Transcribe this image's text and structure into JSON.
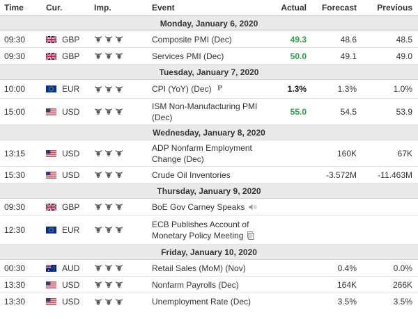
{
  "header": {
    "time": "Time",
    "currency": "Cur.",
    "importance": "Imp.",
    "event": "Event",
    "actual": "Actual",
    "forecast": "Forecast",
    "previous": "Previous"
  },
  "days": [
    {
      "label": "Monday, January 6, 2020"
    },
    {
      "label": "Tuesday, January 7, 2020"
    },
    {
      "label": "Wednesday, January 8, 2020"
    },
    {
      "label": "Thursday, January 9, 2020"
    },
    {
      "label": "Friday, January 10, 2020"
    }
  ],
  "rows": [
    {
      "time": "09:30",
      "flag": "gb-flag",
      "currency": "GBP",
      "event": "Composite PMI (Dec)",
      "event2": "",
      "actual": "49.3",
      "actual_color": "#2ea043",
      "forecast": "48.6",
      "previous": "48.5"
    },
    {
      "time": "09:30",
      "flag": "gb-flag",
      "currency": "GBP",
      "event": "Services PMI (Dec)",
      "event2": "",
      "actual": "50.0",
      "actual_color": "#2ea043",
      "forecast": "49.1",
      "previous": "49.0"
    },
    {
      "time": "10:00",
      "flag": "eu-flag",
      "currency": "EUR",
      "event": "CPI (YoY) (Dec)",
      "event2": "",
      "actual": "1.3%",
      "actual_color": "#111111",
      "forecast": "1.3%",
      "previous": "1.0%",
      "suffix_icon": "preliminary-icon"
    },
    {
      "time": "15:00",
      "flag": "us-flag",
      "currency": "USD",
      "event": "ISM Non-Manufacturing PMI",
      "event2": "(Dec)",
      "actual": "55.0",
      "actual_color": "#2ea043",
      "forecast": "54.5",
      "previous": "53.9"
    },
    {
      "time": "13:15",
      "flag": "us-flag",
      "currency": "USD",
      "event": "ADP Nonfarm Employment",
      "event2": "Change (Dec)",
      "actual": "",
      "actual_color": "#111111",
      "forecast": "160K",
      "previous": "67K"
    },
    {
      "time": "15:30",
      "flag": "us-flag",
      "currency": "USD",
      "event": "Crude Oil Inventories",
      "event2": "",
      "actual": "",
      "actual_color": "#111111",
      "forecast": "-3.572M",
      "previous": "-11.463M"
    },
    {
      "time": "09:30",
      "flag": "gb-flag",
      "currency": "GBP",
      "event": "BoE Gov Carney Speaks",
      "event2": "",
      "actual": "",
      "actual_color": "#111111",
      "forecast": "",
      "previous": "",
      "suffix_icon": "speech-icon"
    },
    {
      "time": "12:30",
      "flag": "eu-flag",
      "currency": "EUR",
      "event": "ECB Publishes Account of",
      "event2": "Monetary Policy Meeting",
      "actual": "",
      "actual_color": "#111111",
      "forecast": "",
      "previous": "",
      "suffix_icon": "document-icon"
    },
    {
      "time": "00:30",
      "flag": "au-flag",
      "currency": "AUD",
      "event": "Retail Sales (MoM) (Nov)",
      "event2": "",
      "actual": "",
      "actual_color": "#111111",
      "forecast": "0.4%",
      "previous": "0.0%"
    },
    {
      "time": "13:30",
      "flag": "us-flag",
      "currency": "USD",
      "event": "Nonfarm Payrolls (Dec)",
      "event2": "",
      "actual": "",
      "actual_color": "#111111",
      "forecast": "164K",
      "previous": "266K"
    },
    {
      "time": "13:30",
      "flag": "us-flag",
      "currency": "USD",
      "event": "Unemployment Rate (Dec)",
      "event2": "",
      "actual": "",
      "actual_color": "#111111",
      "forecast": "3.5%",
      "previous": "3.5%"
    }
  ],
  "importance_icon": "bull-icon",
  "importance_level": 3,
  "colors": {
    "day_bar": "#e9e9e9",
    "positive": "#2ea043",
    "importance": "#555555"
  }
}
